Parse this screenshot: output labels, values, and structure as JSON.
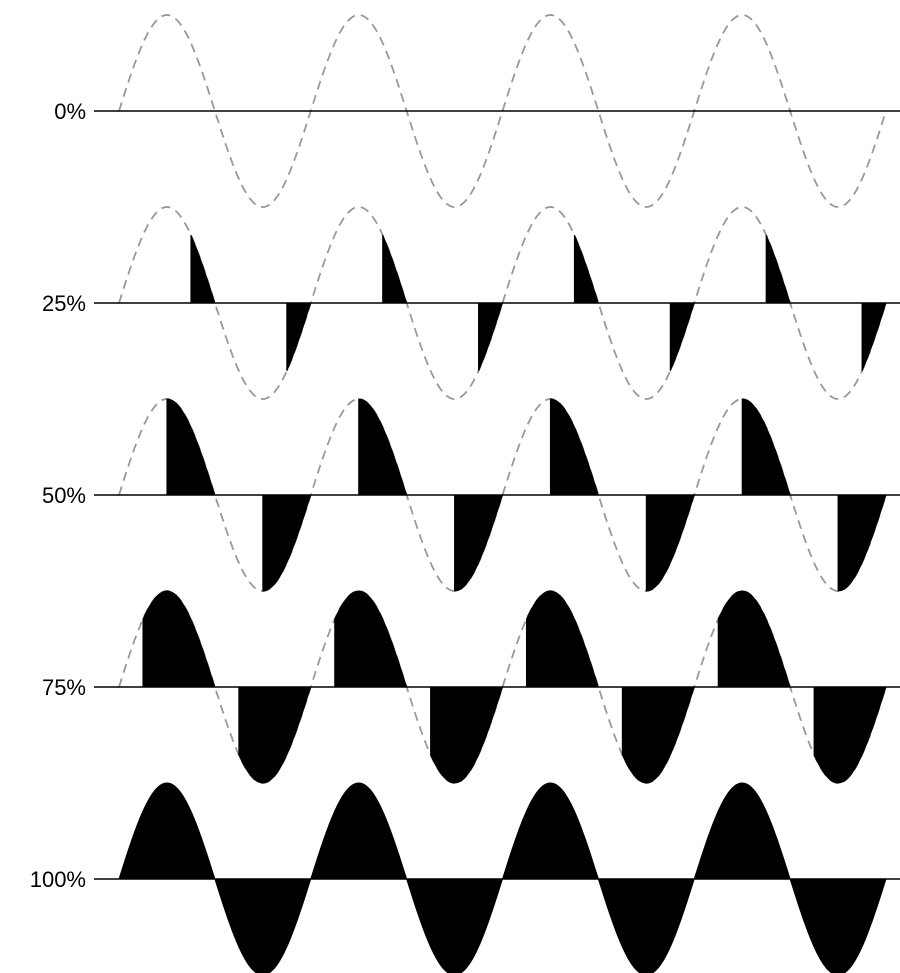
{
  "diagram": {
    "type": "phase-angle-control-waveforms",
    "cycles_per_row": 4,
    "colors": {
      "reference_wave": "#999999",
      "conducted_fill": "#000000",
      "baseline": "#000000",
      "background": "#ffffff"
    },
    "rows": [
      {
        "label": "0%",
        "conduction_fraction": 0.0
      },
      {
        "label": "25%",
        "conduction_fraction": 0.25
      },
      {
        "label": "50%",
        "conduction_fraction": 0.5
      },
      {
        "label": "75%",
        "conduction_fraction": 0.75
      },
      {
        "label": "100%",
        "conduction_fraction": 1.0
      }
    ]
  }
}
